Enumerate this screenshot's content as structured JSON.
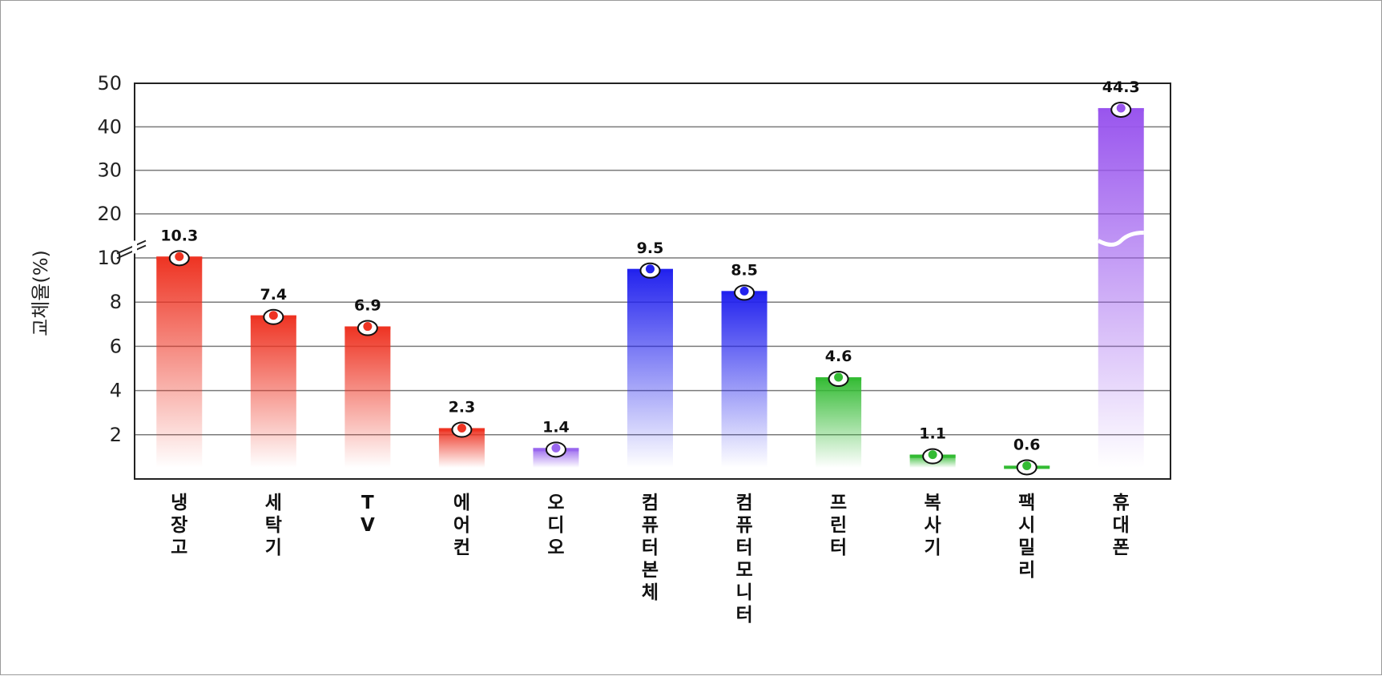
{
  "chart_data": {
    "type": "bar",
    "ylabel": "교체율(%)",
    "categories": [
      "냉장고",
      "세탁기",
      "TV",
      "에어컨",
      "오디오",
      "컴퓨터본체",
      "컴퓨터모니터",
      "프린터",
      "복사기",
      "팩시밀리",
      "휴대폰"
    ],
    "values": [
      10.3,
      7.4,
      6.9,
      2.3,
      1.4,
      9.5,
      8.5,
      4.6,
      1.1,
      0.6,
      44.3
    ],
    "value_labels": [
      "10.3",
      "7.4",
      "6.9",
      "2.3",
      "1.4",
      "9.5",
      "8.5",
      "4.6",
      "1.1",
      "0.6",
      "44.3"
    ],
    "colors": [
      "#ee3322",
      "#ee3322",
      "#ee3322",
      "#ee3322",
      "#9966ee",
      "#2222ee",
      "#2222ee",
      "#33bb33",
      "#33bb33",
      "#33bb33",
      "#9955ee"
    ],
    "y_ticks": [
      2,
      4,
      6,
      8,
      10,
      20,
      30,
      40,
      50
    ],
    "ylim": [
      0,
      50
    ],
    "axis_break": [
      10,
      20
    ],
    "grid": true,
    "legend": "none"
  }
}
